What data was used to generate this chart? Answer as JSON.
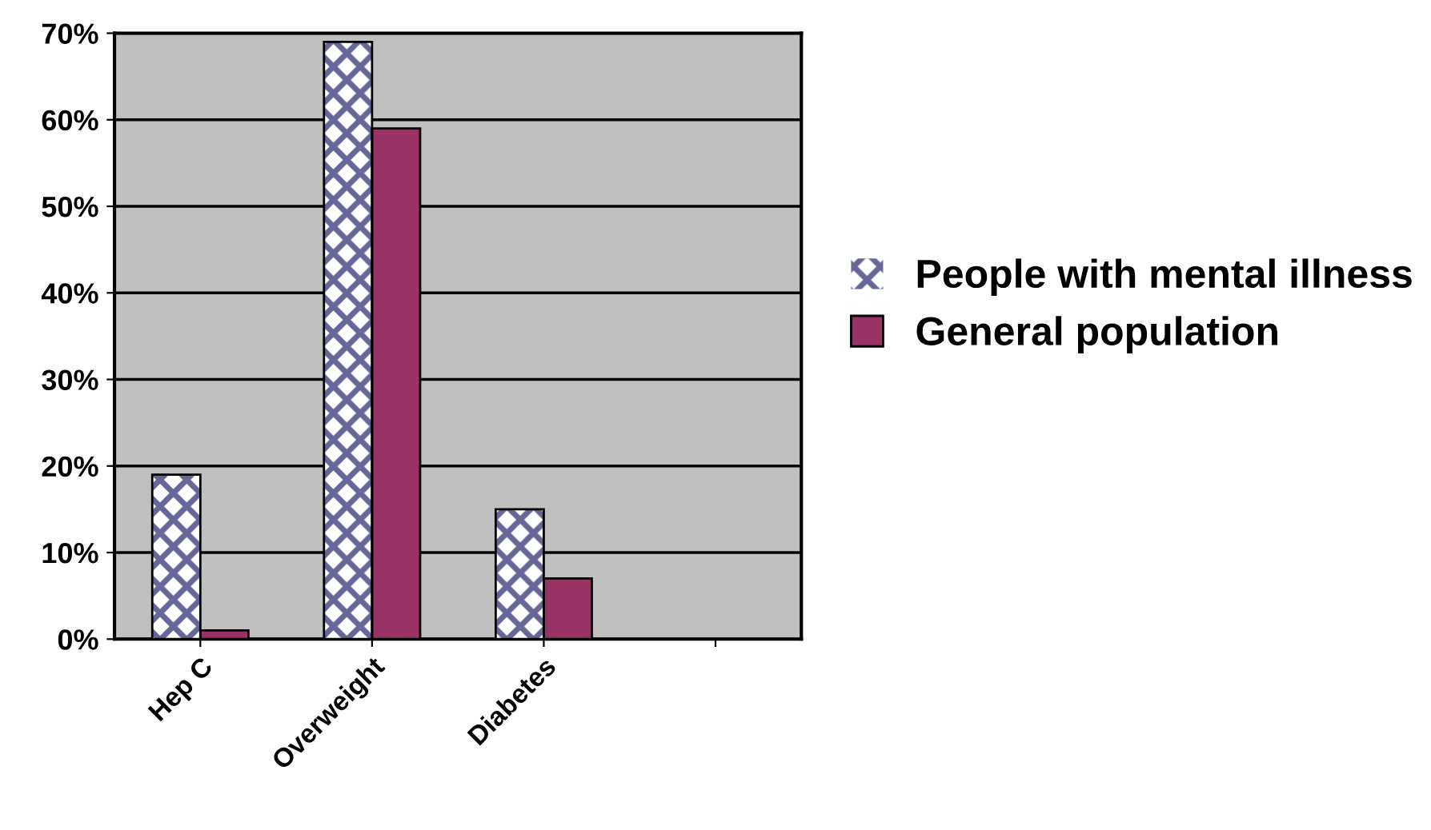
{
  "chart_data": {
    "type": "bar",
    "categories": [
      "Hep C",
      "Overweight",
      "Diabetes",
      null
    ],
    "series": [
      {
        "name": "People with mental illness",
        "color": "#666699",
        "values": [
          19,
          69,
          15,
          null
        ]
      },
      {
        "name": "General population",
        "color": "#993366",
        "values": [
          1,
          59,
          7,
          null
        ]
      }
    ],
    "ylim": [
      0,
      70
    ],
    "yticks": [
      {
        "value": 0,
        "label": "0%"
      },
      {
        "value": 10,
        "label": "10%"
      },
      {
        "value": 20,
        "label": "20%"
      },
      {
        "value": 30,
        "label": "30%"
      },
      {
        "value": 40,
        "label": "40%"
      },
      {
        "value": 50,
        "label": "50%"
      },
      {
        "value": 60,
        "label": "60%"
      },
      {
        "value": 70,
        "label": "70%"
      }
    ],
    "grid": "y",
    "legend": "right"
  }
}
